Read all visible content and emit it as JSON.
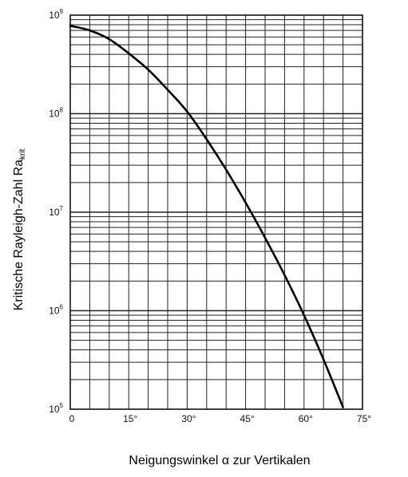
{
  "chart_data": {
    "type": "line",
    "xlabel": "Neigungswinkel α zur Vertikalen",
    "ylabel_main": "Kritische Rayleigh-Zahl Ra",
    "ylabel_sub": "krit",
    "x_unit": "°",
    "xlim": [
      0,
      75
    ],
    "x_ticks": [
      0,
      15,
      30,
      45,
      60,
      75
    ],
    "x_tick_labels": [
      "0",
      "15°",
      "30°",
      "45°",
      "60°",
      "75°"
    ],
    "x_grid_step": 5,
    "y_scale": "log",
    "ylim": [
      100000,
      1000000000
    ],
    "y_ticks": [
      {
        "base": "10",
        "exp": "9"
      },
      {
        "base": "10",
        "exp": "8"
      },
      {
        "base": "10",
        "exp": "7"
      },
      {
        "base": "10",
        "exp": "6"
      },
      {
        "base": "10",
        "exp": "5"
      }
    ],
    "grid": true,
    "series": [
      {
        "x": [
          0,
          5,
          10,
          15,
          20,
          25,
          30,
          35,
          40,
          45,
          50,
          55,
          60,
          65,
          70
        ],
        "y": [
          780000000,
          700000000,
          570000000,
          410000000,
          280000000,
          175000000,
          105000000,
          55000000,
          27000000,
          12500000,
          5500000,
          2300000,
          900000,
          320000,
          105000
        ]
      }
    ]
  }
}
